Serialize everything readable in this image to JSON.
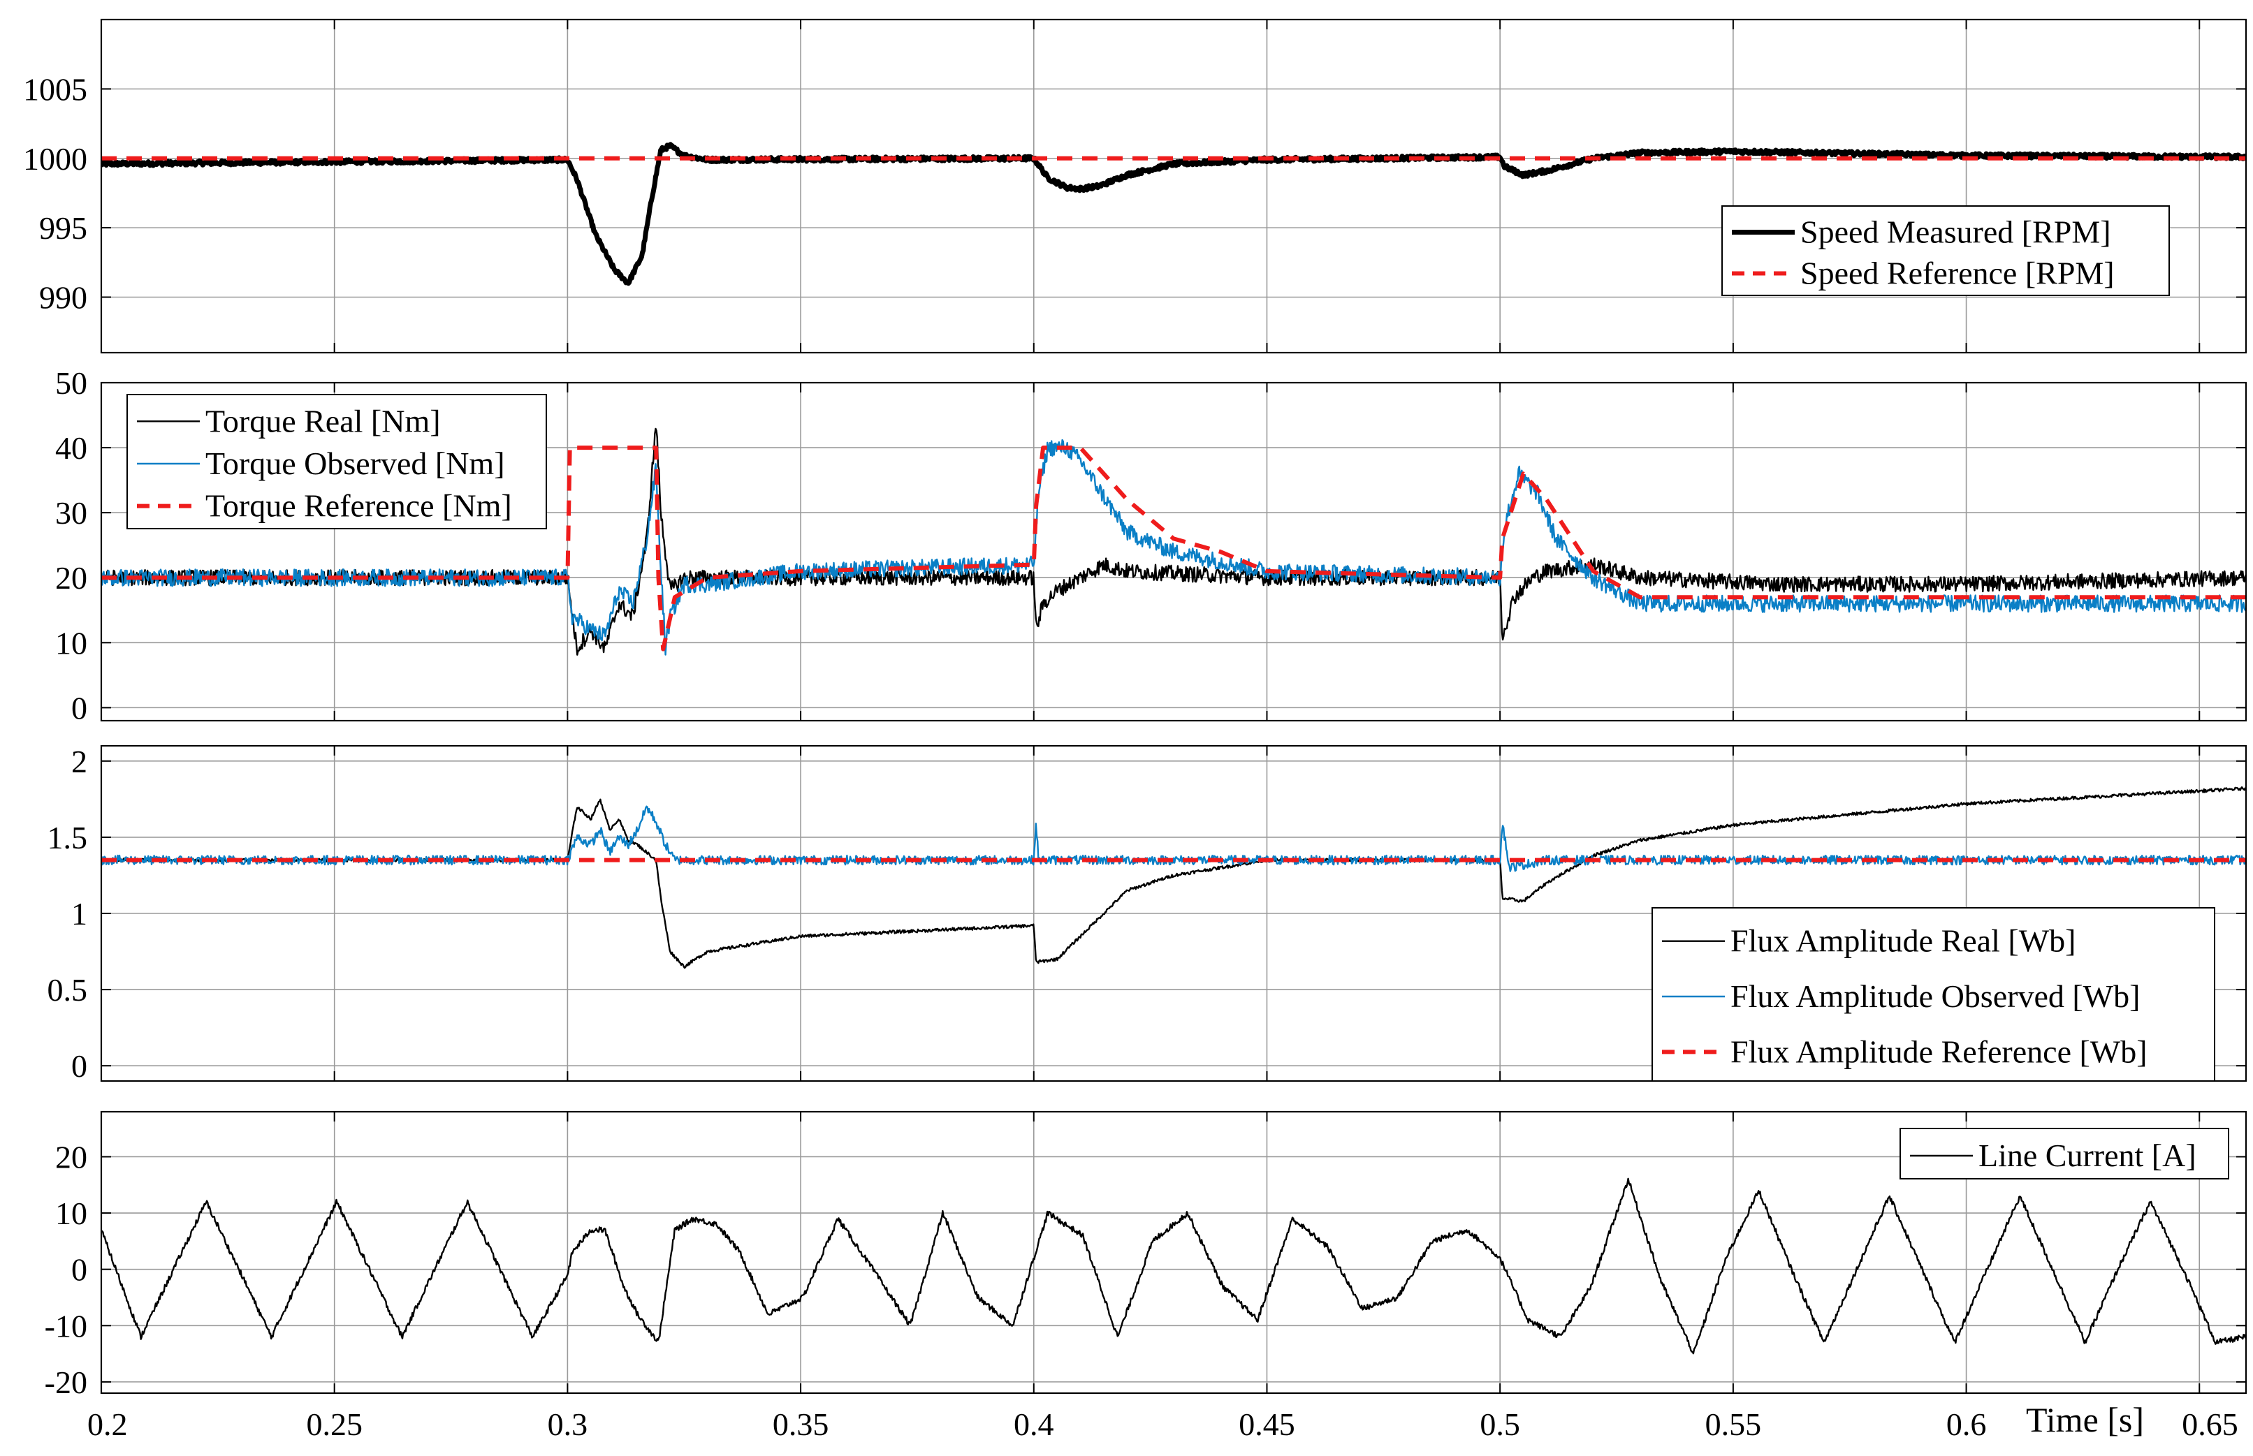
{
  "colors": {
    "black": "#000000",
    "blue": "#0a7fc6",
    "red": "#ef1c1c",
    "grid": "#9a9a9a"
  },
  "chart_data": [
    {
      "type": "line",
      "title": "",
      "xlabel": "",
      "ylabel": "",
      "xlim": [
        0.2,
        0.66
      ],
      "ylim": [
        986,
        1010
      ],
      "yticks": [
        990,
        995,
        1000,
        1005
      ],
      "grid": true,
      "legend_position": "right",
      "series": [
        {
          "name": "Speed Measured [RPM]",
          "color": "#000000",
          "style": "thick",
          "noise": 0.15,
          "x": [
            0.2,
            0.3,
            0.302,
            0.306,
            0.31,
            0.313,
            0.316,
            0.318,
            0.32,
            0.322,
            0.325,
            0.33,
            0.4,
            0.403,
            0.407,
            0.41,
            0.414,
            0.42,
            0.43,
            0.45,
            0.5,
            0.501,
            0.505,
            0.51,
            0.52,
            0.53,
            0.55,
            0.6,
            0.66
          ],
          "y": [
            999.6,
            999.9,
            998.5,
            994.5,
            992,
            991,
            993,
            997,
            1000.6,
            1000.9,
            1000.2,
            999.9,
            1000,
            998.6,
            997.9,
            997.8,
            998,
            998.8,
            999.6,
            999.9,
            1000.1,
            999.4,
            998.8,
            999.1,
            1000,
            1000.4,
            1000.5,
            1000.2,
            1000.1
          ]
        },
        {
          "name": "Speed Reference [RPM]",
          "color": "#ef1c1c",
          "style": "dashed",
          "x": [
            0.2,
            0.66
          ],
          "y": [
            1000,
            1000
          ]
        }
      ]
    },
    {
      "type": "line",
      "title": "",
      "xlabel": "",
      "ylabel": "",
      "xlim": [
        0.2,
        0.66
      ],
      "ylim": [
        -2,
        50
      ],
      "yticks": [
        0,
        10,
        20,
        30,
        40,
        50
      ],
      "grid": true,
      "legend_position": "top-left",
      "series": [
        {
          "name": "Torque Real [Nm]",
          "color": "#000000",
          "style": "thin",
          "noise": 1.2,
          "x": [
            0.2,
            0.3,
            0.302,
            0.305,
            0.308,
            0.311,
            0.314,
            0.317,
            0.319,
            0.32,
            0.322,
            0.325,
            0.33,
            0.35,
            0.4,
            0.4005,
            0.402,
            0.405,
            0.41,
            0.415,
            0.42,
            0.45,
            0.5,
            0.5005,
            0.503,
            0.507,
            0.51,
            0.52,
            0.53,
            0.56,
            0.6,
            0.66
          ],
          "y": [
            20,
            20,
            9,
            12,
            9,
            16,
            14,
            26,
            44,
            30,
            18,
            20,
            20,
            20,
            20,
            12,
            16,
            18,
            20,
            22,
            21,
            20,
            20,
            11,
            17,
            20,
            21,
            22,
            20,
            19,
            19,
            20
          ]
        },
        {
          "name": "Torque Observed [Nm]",
          "color": "#0a7fc6",
          "style": "thin",
          "noise": 1.3,
          "x": [
            0.2,
            0.3,
            0.301,
            0.305,
            0.308,
            0.311,
            0.314,
            0.317,
            0.319,
            0.3195,
            0.321,
            0.322,
            0.325,
            0.33,
            0.35,
            0.4,
            0.401,
            0.403,
            0.407,
            0.41,
            0.42,
            0.43,
            0.45,
            0.5,
            0.501,
            0.504,
            0.508,
            0.512,
            0.52,
            0.53,
            0.56,
            0.6,
            0.66
          ],
          "y": [
            20,
            20,
            14,
            12,
            11,
            18,
            16,
            26,
            37,
            28,
            9,
            14,
            19,
            19,
            21,
            22,
            33,
            40,
            40,
            38,
            27,
            24,
            21,
            20,
            28,
            36,
            33,
            26,
            20,
            16,
            16,
            16,
            16
          ]
        },
        {
          "name": "Torque Reference [Nm]",
          "color": "#ef1c1c",
          "style": "dashed",
          "x": [
            0.2,
            0.3,
            0.3005,
            0.319,
            0.3195,
            0.3205,
            0.323,
            0.33,
            0.35,
            0.4,
            0.4005,
            0.402,
            0.41,
            0.42,
            0.43,
            0.44,
            0.45,
            0.5,
            0.5005,
            0.505,
            0.51,
            0.52,
            0.53,
            0.54,
            0.6,
            0.66
          ],
          "y": [
            20,
            20,
            40,
            40,
            20,
            9,
            17,
            20,
            21,
            22,
            31,
            40,
            40,
            32,
            26,
            24,
            21,
            20,
            26,
            36,
            32,
            21,
            17,
            17,
            17,
            17
          ]
        }
      ]
    },
    {
      "type": "line",
      "title": "",
      "xlabel": "",
      "ylabel": "",
      "xlim": [
        0.2,
        0.66
      ],
      "ylim": [
        -0.1,
        2.1
      ],
      "yticks": [
        0,
        0.5,
        1,
        1.5,
        2
      ],
      "grid": true,
      "legend_position": "right",
      "series": [
        {
          "name": "Flux Amplitude Real [Wb]",
          "color": "#000000",
          "style": "thin",
          "noise": 0.01,
          "x": [
            0.2,
            0.3,
            0.302,
            0.305,
            0.307,
            0.309,
            0.311,
            0.313,
            0.315,
            0.317,
            0.319,
            0.32,
            0.322,
            0.325,
            0.33,
            0.35,
            0.4,
            0.4005,
            0.405,
            0.41,
            0.415,
            0.42,
            0.43,
            0.45,
            0.5,
            0.5005,
            0.505,
            0.51,
            0.52,
            0.53,
            0.55,
            0.6,
            0.66
          ],
          "y": [
            1.35,
            1.35,
            1.7,
            1.62,
            1.75,
            1.55,
            1.62,
            1.48,
            1.45,
            1.4,
            1.35,
            1.1,
            0.75,
            0.65,
            0.75,
            0.85,
            0.92,
            0.68,
            0.7,
            0.85,
            1.0,
            1.15,
            1.25,
            1.35,
            1.35,
            1.1,
            1.08,
            1.2,
            1.38,
            1.48,
            1.58,
            1.72,
            1.82
          ]
        },
        {
          "name": "Flux Amplitude Observed [Wb]",
          "color": "#0a7fc6",
          "style": "thin",
          "noise": 0.03,
          "x": [
            0.2,
            0.3,
            0.302,
            0.305,
            0.307,
            0.309,
            0.311,
            0.313,
            0.315,
            0.317,
            0.319,
            0.321,
            0.323,
            0.325,
            0.4,
            0.4005,
            0.401,
            0.5,
            0.5005,
            0.502,
            0.51,
            0.66
          ],
          "y": [
            1.35,
            1.35,
            1.5,
            1.45,
            1.55,
            1.4,
            1.5,
            1.45,
            1.55,
            1.7,
            1.6,
            1.45,
            1.35,
            1.35,
            1.35,
            1.6,
            1.35,
            1.35,
            1.6,
            1.3,
            1.35,
            1.35
          ]
        },
        {
          "name": "Flux Amplitude Reference [Wb]",
          "color": "#ef1c1c",
          "style": "dashed",
          "x": [
            0.2,
            0.66
          ],
          "y": [
            1.35,
            1.35
          ]
        }
      ]
    },
    {
      "type": "line",
      "title": "",
      "xlabel": "Time [s]",
      "ylabel": "",
      "xlim": [
        0.2,
        0.66
      ],
      "ylim": [
        -22,
        28
      ],
      "yticks": [
        -20,
        -10,
        0,
        10,
        20
      ],
      "xticks": [
        0.2,
        0.25,
        0.3,
        0.35,
        0.4,
        0.45,
        0.5,
        0.55,
        0.6,
        0.65
      ],
      "xticklabels": [
        "0.2",
        "0.25",
        "0.3",
        "0.35",
        "0.4",
        "0.45",
        "0.5",
        "0.55",
        "0.6",
        "0.65"
      ],
      "grid": true,
      "legend_position": "top-right",
      "series": [
        {
          "name": "Line Current [A]",
          "color": "#000000",
          "style": "thin",
          "noise": 0.5,
          "x": [
            0.2,
            0.2085,
            0.2225,
            0.2365,
            0.2505,
            0.2645,
            0.2785,
            0.2925,
            0.3,
            0.301,
            0.305,
            0.308,
            0.31,
            0.312,
            0.315,
            0.3195,
            0.323,
            0.327,
            0.332,
            0.337,
            0.343,
            0.3505,
            0.358,
            0.3655,
            0.3735,
            0.3805,
            0.388,
            0.3955,
            0.403,
            0.4105,
            0.418,
            0.4255,
            0.433,
            0.4405,
            0.448,
            0.4555,
            0.463,
            0.4705,
            0.478,
            0.4855,
            0.493,
            0.5,
            0.506,
            0.513,
            0.5195,
            0.5275,
            0.5345,
            0.5415,
            0.5485,
            0.5555,
            0.5625,
            0.5695,
            0.5765,
            0.5835,
            0.5905,
            0.5975,
            0.6045,
            0.6115,
            0.6185,
            0.6255,
            0.6325,
            0.6395,
            0.6465,
            0.6535,
            0.66
          ],
          "y": [
            7,
            -12,
            12,
            -12,
            12,
            -12,
            12,
            -12,
            -1,
            3,
            7,
            7,
            2,
            -3,
            -8,
            -13,
            7,
            9,
            8,
            3,
            -8,
            -5,
            9,
            0,
            -10,
            10,
            -5,
            -10,
            10,
            6,
            -12,
            5,
            10,
            -3,
            -9,
            9,
            4,
            -7,
            -5,
            5,
            7,
            2,
            -9,
            -12,
            -3,
            16,
            -2,
            -15,
            2,
            14,
            0,
            -13,
            0,
            13,
            0,
            -13,
            0,
            13,
            0,
            -13,
            0,
            12,
            0,
            -13,
            -12
          ]
        }
      ]
    }
  ]
}
